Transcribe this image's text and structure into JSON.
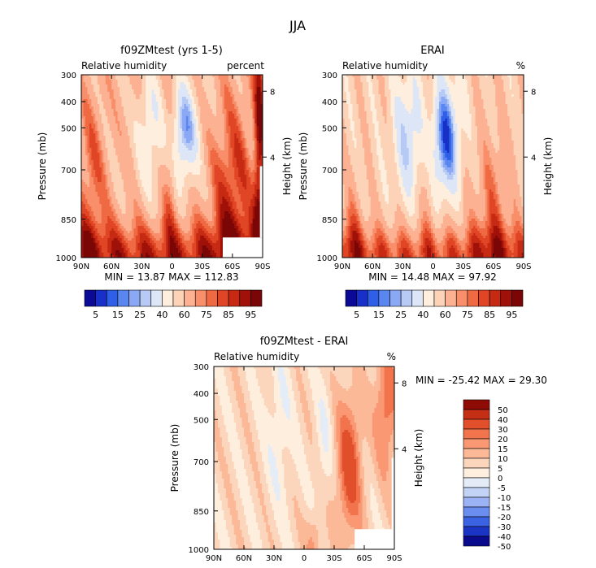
{
  "figure": {
    "title": "JJA"
  },
  "chart_data": [
    {
      "type": "heatmap",
      "title": "f09ZMtest (yrs 1-5)",
      "variable": "Relative humidity",
      "units": "percent",
      "x_ticks": [
        "90N",
        "60N",
        "30N",
        "0",
        "30S",
        "60S",
        "90S"
      ],
      "y_ticks": [
        "300",
        "400",
        "500",
        "700",
        "850",
        "1000"
      ],
      "y_label": "Pressure (mb)",
      "y2_ticks": [
        "8",
        "4"
      ],
      "y2_label": "Height (km)",
      "stats": "MIN =  13.87   MAX = 112.83",
      "colorbar_labels": [
        "5",
        "15",
        "25",
        "40",
        "60",
        "75",
        "85",
        "95"
      ],
      "pattern": "model"
    },
    {
      "type": "heatmap",
      "title": "ERAI",
      "variable": "Relative humidity",
      "units": "%",
      "x_ticks": [
        "90N",
        "60N",
        "30N",
        "0",
        "30S",
        "60S",
        "90S"
      ],
      "y_ticks": [
        "300",
        "400",
        "500",
        "700",
        "850",
        "1000"
      ],
      "y_label": "Pressure (mb)",
      "y2_ticks": [
        "8",
        "4"
      ],
      "y2_label": "Height (km)",
      "stats": "MIN =  14.48   MAX =  97.92",
      "colorbar_labels": [
        "5",
        "15",
        "25",
        "40",
        "60",
        "75",
        "85",
        "95"
      ],
      "pattern": "obs"
    },
    {
      "type": "heatmap",
      "title": "f09ZMtest - ERAI",
      "variable": "Relative humidity",
      "units": "%",
      "x_ticks": [
        "90N",
        "60N",
        "30N",
        "0",
        "30S",
        "60S",
        "90S"
      ],
      "y_ticks": [
        "300",
        "400",
        "500",
        "700",
        "850",
        "1000"
      ],
      "y_label": "Pressure (mb)",
      "y2_ticks": [
        "8",
        "4"
      ],
      "y2_label": "Height (km)",
      "stats": "MIN = -25.42   MAX =  29.30",
      "colorbar_labels": [
        "50",
        "40",
        "30",
        "20",
        "15",
        "10",
        "5",
        "0",
        "-5",
        "-10",
        "-15",
        "-20",
        "-30",
        "-40",
        "-50"
      ],
      "pattern": "diff"
    }
  ],
  "colors": {
    "abs_scale": [
      "#0a0a96",
      "#1830c8",
      "#2f5fe6",
      "#5a86f0",
      "#8aa8f4",
      "#b7c9f5",
      "#dde6f7",
      "#fdeede",
      "#fdd3b8",
      "#fcb292",
      "#f88f6a",
      "#ef6a43",
      "#e04625",
      "#c72a13",
      "#a01209",
      "#7a0606"
    ],
    "diff_scale": [
      "#0a0a8c",
      "#1c34c4",
      "#3b62e0",
      "#6a8df0",
      "#9bb3f4",
      "#c3d3f6",
      "#e4ecf8",
      "#fdeede",
      "#fcd6bc",
      "#fbb998",
      "#f99873",
      "#f2744d",
      "#e14f2b",
      "#c52f16",
      "#8e0c05"
    ]
  }
}
